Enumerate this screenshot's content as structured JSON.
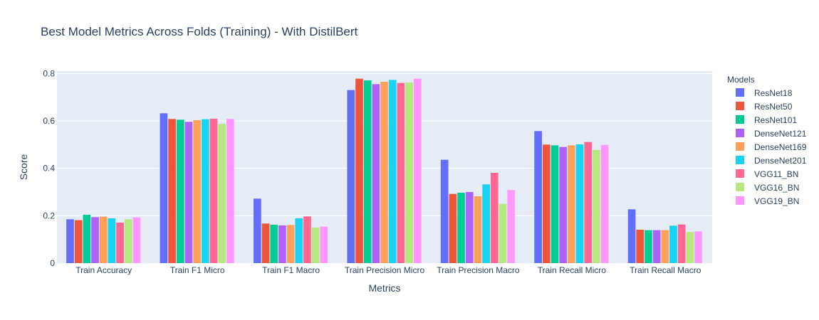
{
  "chart_data": {
    "type": "bar",
    "title": "Best Model Metrics Across Folds (Training) - With DistilBert",
    "xlabel": "Metrics",
    "ylabel": "Score",
    "ylim": [
      0,
      0.81
    ],
    "yticks": [
      0,
      0.2,
      0.4,
      0.6,
      0.8
    ],
    "ytick_labels": [
      "0",
      "0.2",
      "0.4",
      "0.6",
      "0.8"
    ],
    "legend_title": "Models",
    "legend_position": "right",
    "grid": true,
    "categories": [
      "Train Accuracy",
      "Train F1 Micro",
      "Train F1 Macro",
      "Train Precision Micro",
      "Train Precision Macro",
      "Train Recall Micro",
      "Train Recall Macro"
    ],
    "series": [
      {
        "name": "ResNet18",
        "color": "#636efa",
        "values": [
          0.185,
          0.632,
          0.272,
          0.73,
          0.436,
          0.557,
          0.227
        ]
      },
      {
        "name": "ResNet50",
        "color": "#ef553b",
        "values": [
          0.181,
          0.608,
          0.167,
          0.778,
          0.292,
          0.5,
          0.141
        ]
      },
      {
        "name": "ResNet101",
        "color": "#00cc96",
        "values": [
          0.204,
          0.605,
          0.162,
          0.771,
          0.297,
          0.497,
          0.139
        ]
      },
      {
        "name": "DenseNet121",
        "color": "#ab63fa",
        "values": [
          0.194,
          0.596,
          0.159,
          0.755,
          0.3,
          0.49,
          0.139
        ]
      },
      {
        "name": "DenseNet169",
        "color": "#ffa15a",
        "values": [
          0.196,
          0.603,
          0.161,
          0.765,
          0.282,
          0.497,
          0.139
        ]
      },
      {
        "name": "DenseNet201",
        "color": "#19d3f3",
        "values": [
          0.189,
          0.607,
          0.189,
          0.773,
          0.332,
          0.501,
          0.158
        ]
      },
      {
        "name": "VGG11_BN",
        "color": "#ff6692",
        "values": [
          0.171,
          0.609,
          0.197,
          0.76,
          0.381,
          0.511,
          0.163
        ]
      },
      {
        "name": "VGG16_BN",
        "color": "#b6e880",
        "values": [
          0.185,
          0.587,
          0.15,
          0.762,
          0.25,
          0.477,
          0.131
        ]
      },
      {
        "name": "VGG19_BN",
        "color": "#ff97ff",
        "values": [
          0.193,
          0.608,
          0.154,
          0.778,
          0.308,
          0.499,
          0.134
        ]
      }
    ]
  }
}
